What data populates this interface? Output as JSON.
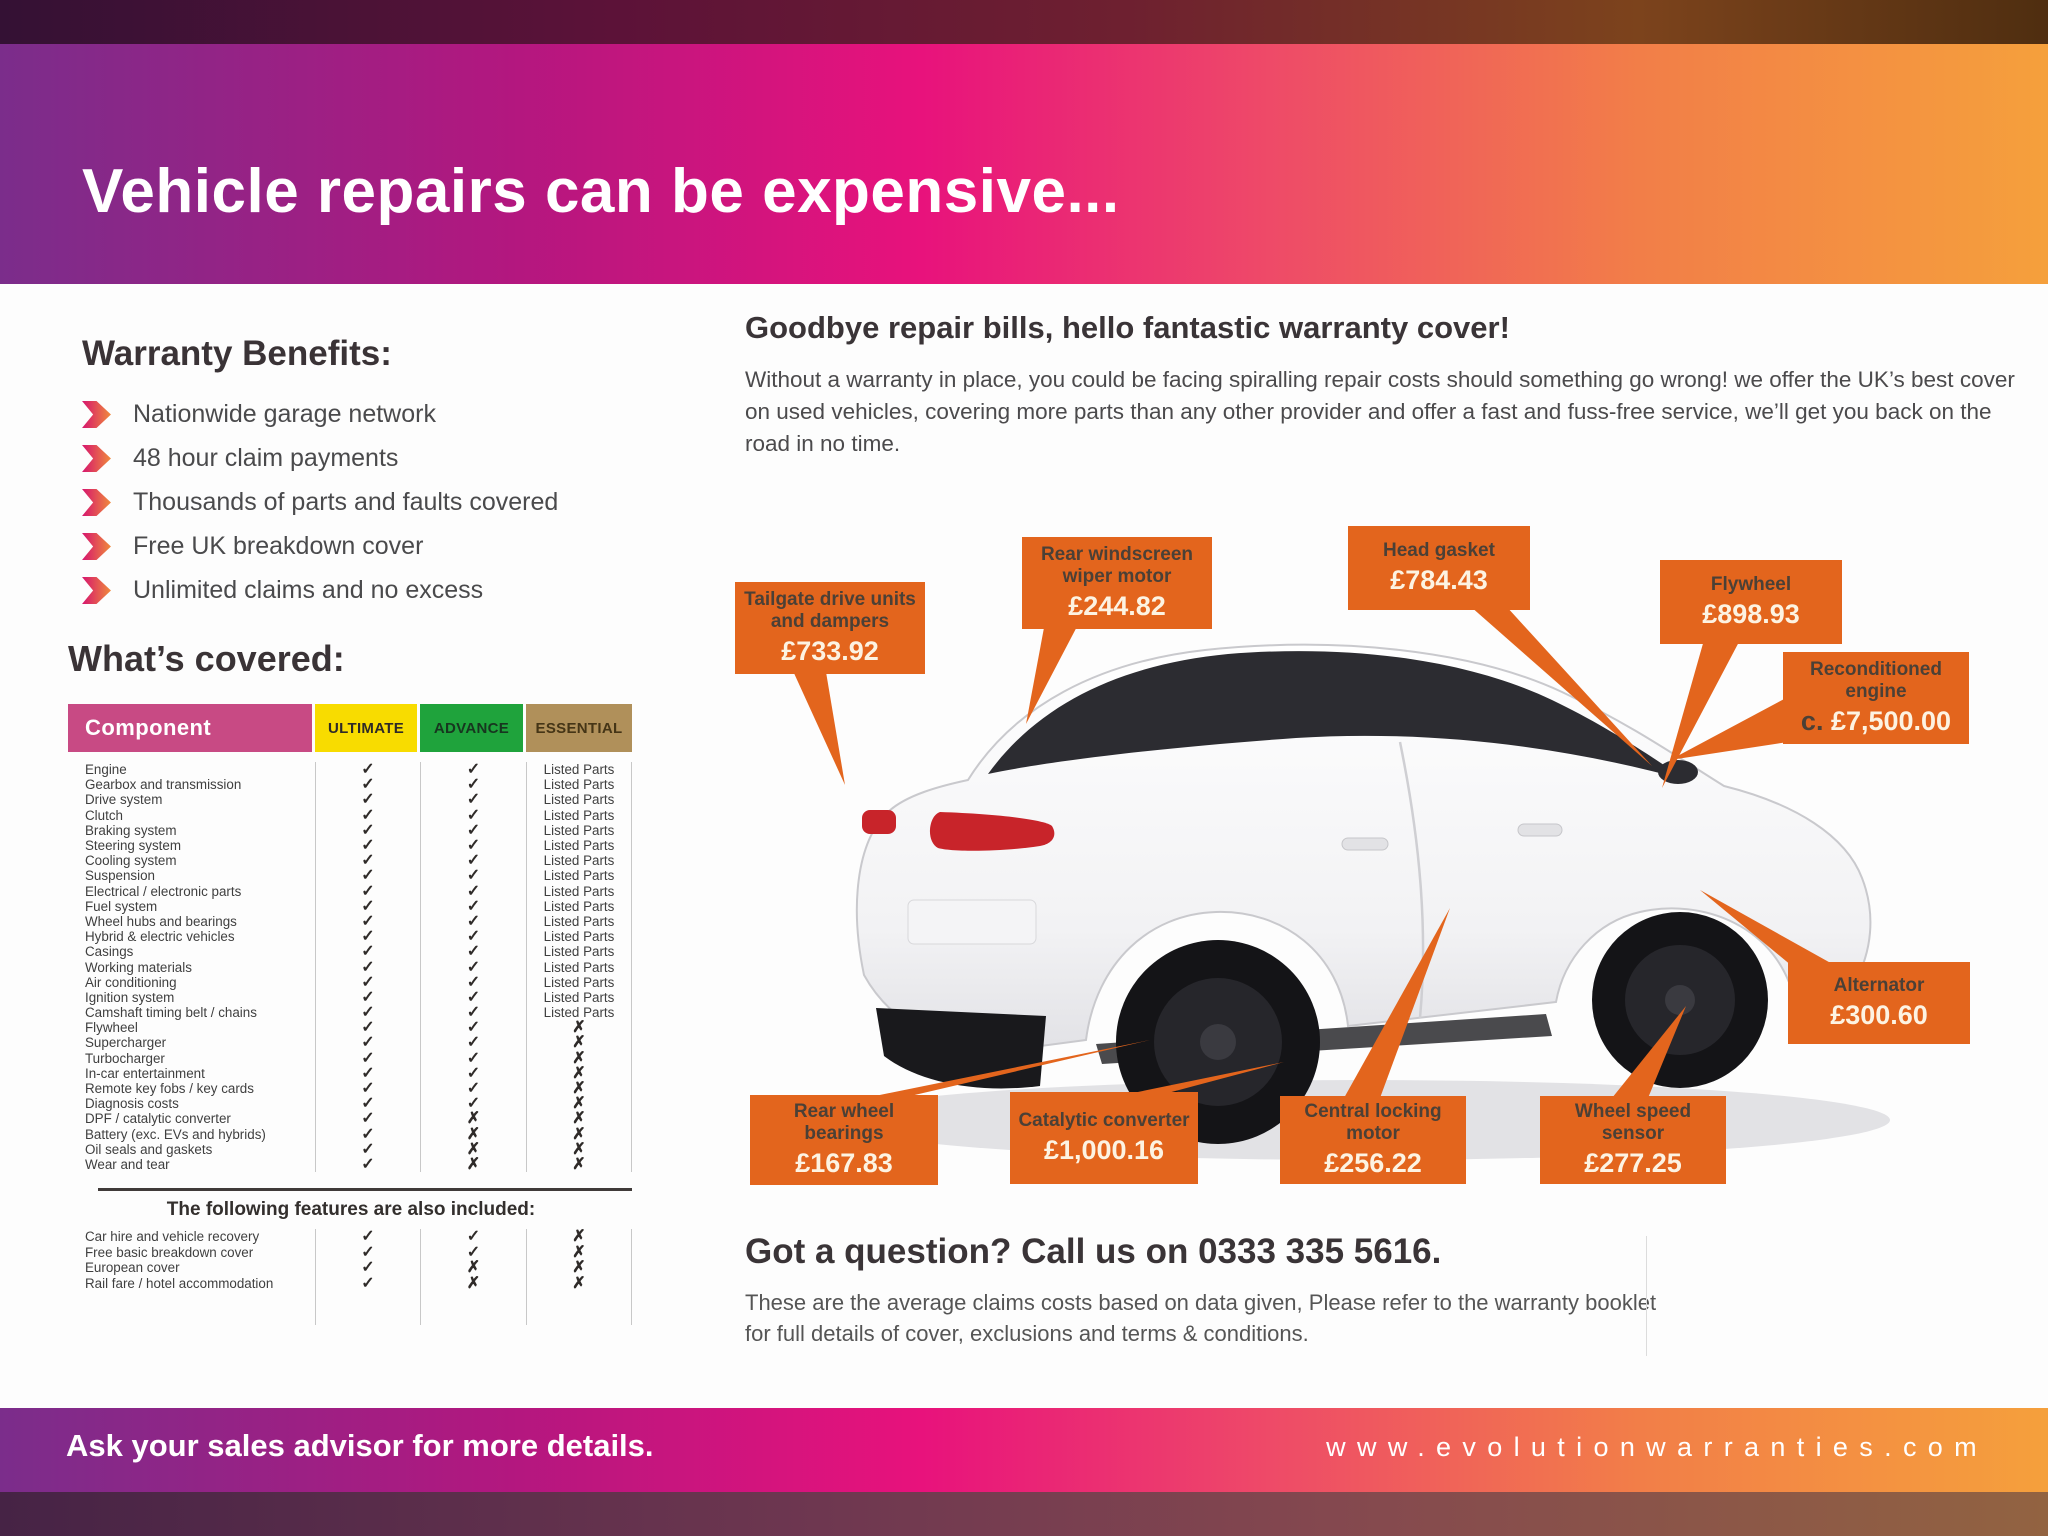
{
  "header": {
    "title": "Vehicle repairs can be expensive..."
  },
  "benefits": {
    "title": "Warranty Benefits:",
    "items": [
      "Nationwide garage network",
      "48 hour claim payments",
      "Thousands of parts and faults covered",
      "Free UK breakdown cover",
      "Unlimited claims and no excess"
    ]
  },
  "covered": {
    "title": "What’s covered:",
    "columns": [
      "Component",
      "ULTIMATE",
      "ADVANCE",
      "ESSENTIAL"
    ],
    "check": "✓",
    "cross": "✗",
    "rows": [
      [
        "Engine",
        "✓",
        "✓",
        "Listed Parts"
      ],
      [
        "Gearbox and transmission",
        "✓",
        "✓",
        "Listed Parts"
      ],
      [
        "Drive system",
        "✓",
        "✓",
        "Listed Parts"
      ],
      [
        "Clutch",
        "✓",
        "✓",
        "Listed Parts"
      ],
      [
        "Braking system",
        "✓",
        "✓",
        "Listed Parts"
      ],
      [
        "Steering system",
        "✓",
        "✓",
        "Listed Parts"
      ],
      [
        "Cooling system",
        "✓",
        "✓",
        "Listed Parts"
      ],
      [
        "Suspension",
        "✓",
        "✓",
        "Listed Parts"
      ],
      [
        "Electrical / electronic parts",
        "✓",
        "✓",
        "Listed Parts"
      ],
      [
        "Fuel system",
        "✓",
        "✓",
        "Listed Parts"
      ],
      [
        "Wheel hubs and bearings",
        "✓",
        "✓",
        "Listed Parts"
      ],
      [
        "Hybrid & electric vehicles",
        "✓",
        "✓",
        "Listed Parts"
      ],
      [
        "Casings",
        "✓",
        "✓",
        "Listed Parts"
      ],
      [
        "Working materials",
        "✓",
        "✓",
        "Listed Parts"
      ],
      [
        "Air conditioning",
        "✓",
        "✓",
        "Listed Parts"
      ],
      [
        "Ignition system",
        "✓",
        "✓",
        "Listed Parts"
      ],
      [
        "Camshaft timing belt / chains",
        "✓",
        "✓",
        "Listed Parts"
      ],
      [
        "Flywheel",
        "✓",
        "✓",
        "✗"
      ],
      [
        "Supercharger",
        "✓",
        "✓",
        "✗"
      ],
      [
        "Turbocharger",
        "✓",
        "✓",
        "✗"
      ],
      [
        "In-car entertainment",
        "✓",
        "✓",
        "✗"
      ],
      [
        "Remote key fobs / key cards",
        "✓",
        "✓",
        "✗"
      ],
      [
        "Diagnosis costs",
        "✓",
        "✓",
        "✗"
      ],
      [
        "DPF / catalytic converter",
        "✓",
        "✗",
        "✗"
      ],
      [
        "Battery (exc. EVs and hybrids)",
        "✓",
        "✗",
        "✗"
      ],
      [
        "Oil seals and gaskets",
        "✓",
        "✗",
        "✗"
      ],
      [
        "Wear and tear",
        "✓",
        "✗",
        "✗"
      ]
    ],
    "extra_title": "The following features are also included:",
    "extra_rows": [
      [
        "Car hire and vehicle recovery",
        "✓",
        "✓",
        "✗"
      ],
      [
        "Free basic breakdown cover",
        "✓",
        "✓",
        "✗"
      ],
      [
        "European cover",
        "✓",
        "✗",
        "✗"
      ],
      [
        "Rail fare / hotel accommodation",
        "✓",
        "✗",
        "✗"
      ]
    ]
  },
  "promo": {
    "title": "Goodbye repair bills, hello fantastic warranty cover!",
    "body": "Without a warranty in place, you could be facing spiralling repair costs should something go wrong! we offer the UK’s best cover on used vehicles, covering more parts than any other provider and offer a fast and fuss-free service, we’ll get you back on the road in no time."
  },
  "callouts": [
    {
      "label": "Tailgate drive units and dampers",
      "price": "£733.92"
    },
    {
      "label": "Rear windscreen wiper motor",
      "price": "£244.82"
    },
    {
      "label": "Head gasket",
      "price": "£784.43"
    },
    {
      "label": "Flywheel",
      "price": "£898.93"
    },
    {
      "label": "Reconditioned engine",
      "prefix": "c. ",
      "price": "£7,500.00"
    },
    {
      "label": "Alternator",
      "price": "£300.60"
    },
    {
      "label": "Rear wheel bearings",
      "price": "£167.83"
    },
    {
      "label": "Catalytic converter",
      "price": "£1,000.16"
    },
    {
      "label": "Central locking motor",
      "price": "£256.22"
    },
    {
      "label": "Wheel speed sensor",
      "price": "£277.25"
    }
  ],
  "contact": {
    "question": "Got a question? Call us on 0333 335 5616.",
    "disclaimer": "These are the average claims costs based on data given, Please refer to the warranty booklet for full details of cover, exclusions and terms & conditions."
  },
  "footer": {
    "left": "Ask your sales advisor for more details.",
    "right": "www.evolutionwarranties.com"
  },
  "colors": {
    "callout_orange": "#e3651d",
    "tier_ultimate": "#f8dc00",
    "tier_advance": "#1fa33c",
    "tier_essential": "#b0905a",
    "component_pink": "#c84a84",
    "gradient_purple": "#7b2d8b",
    "gradient_magenta": "#e8127c",
    "gradient_orange": "#f5a03c"
  }
}
